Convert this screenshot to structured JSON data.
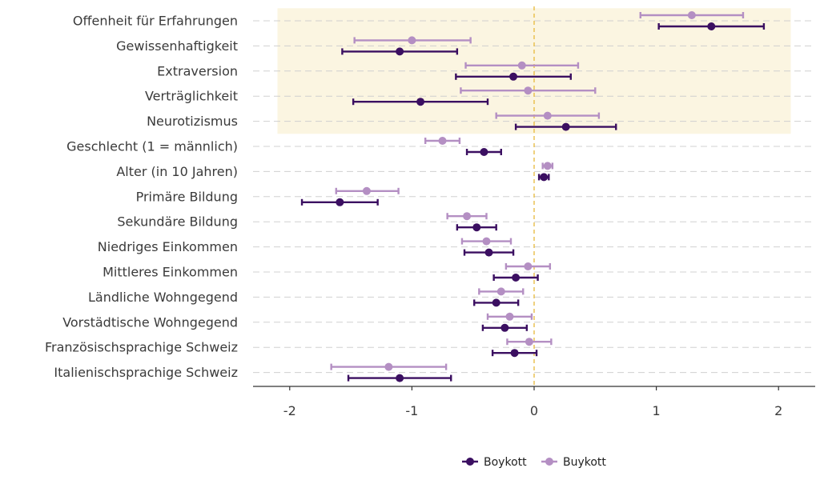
{
  "chart_data": {
    "type": "forest-plot",
    "title": "",
    "xlabel": "",
    "ylabel": "",
    "xlim": [
      -2.3,
      2.3
    ],
    "xticks": [
      -2,
      -1,
      0,
      1,
      2
    ],
    "xtick_labels": [
      "-2",
      "-1",
      "0",
      "1",
      "2"
    ],
    "reference_line": 0,
    "highlight_band": {
      "x_range": [
        -2.1,
        2.1
      ],
      "categories": [
        "Offenheit für Erfahrungen",
        "Gewissenhaftigkeit",
        "Extraversion",
        "Verträglichkeit",
        "Neurotizismus"
      ]
    },
    "grid": "horizontal dashed",
    "legend_position": "bottom",
    "categories": [
      "Offenheit für Erfahrungen",
      "Gewissenhaftigkeit",
      "Extraversion",
      "Verträglichkeit",
      "Neurotizismus",
      "Geschlecht (1 = männlich)",
      "Alter (in 10 Jahren)",
      "Primäre Bildung",
      "Sekundäre Bildung",
      "Niedriges Einkommen",
      "Mittleres Einkommen",
      "Ländliche Wohngegend",
      "Vorstädtische Wohngegend",
      "Französischsprachige Schweiz",
      "Italienischsprachige Schweiz"
    ],
    "series": [
      {
        "name": "Boykott",
        "color": "#3b0f61",
        "estimate": [
          1.45,
          -1.1,
          -0.17,
          -0.93,
          0.26,
          -0.41,
          0.08,
          -1.59,
          -0.47,
          -0.37,
          -0.15,
          -0.31,
          -0.24,
          -0.16,
          -1.1
        ],
        "lower": [
          1.02,
          -1.57,
          -0.64,
          -1.48,
          -0.15,
          -0.55,
          0.04,
          -1.9,
          -0.63,
          -0.57,
          -0.33,
          -0.49,
          -0.42,
          -0.34,
          -1.52
        ],
        "upper": [
          1.88,
          -0.63,
          0.3,
          -0.38,
          0.67,
          -0.27,
          0.12,
          -1.28,
          -0.31,
          -0.17,
          0.03,
          -0.13,
          -0.06,
          0.02,
          -0.68
        ]
      },
      {
        "name": "Buykott",
        "color": "#b48fc3",
        "estimate": [
          1.29,
          -1.0,
          -0.1,
          -0.05,
          0.11,
          -0.75,
          0.11,
          -1.37,
          -0.55,
          -0.39,
          -0.05,
          -0.27,
          -0.2,
          -0.04,
          -1.19
        ],
        "lower": [
          0.87,
          -1.47,
          -0.56,
          -0.6,
          -0.31,
          -0.89,
          0.07,
          -1.62,
          -0.71,
          -0.59,
          -0.23,
          -0.45,
          -0.38,
          -0.22,
          -1.66
        ],
        "upper": [
          1.71,
          -0.52,
          0.36,
          0.5,
          0.53,
          -0.61,
          0.15,
          -1.11,
          -0.39,
          -0.19,
          0.13,
          -0.09,
          -0.02,
          0.14,
          -0.72
        ]
      }
    ]
  },
  "colors": {
    "band": "#fbf5e1",
    "refline": "#e6b83a",
    "grid": "#d0d0d0",
    "axis": "#333333"
  }
}
